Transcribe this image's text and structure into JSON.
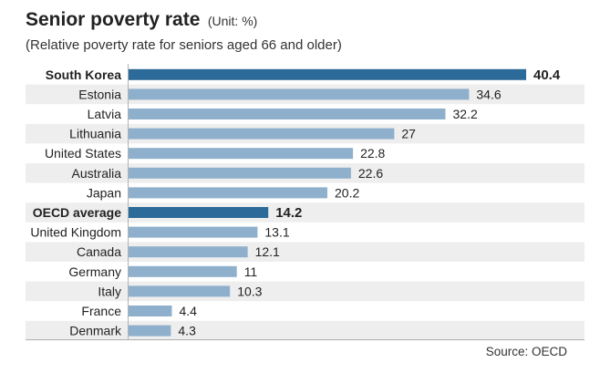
{
  "header": {
    "title": "Senior poverty rate",
    "unit": "(Unit: %)",
    "subtitle": "(Relative poverty rate for seniors aged 66 and older)"
  },
  "footer": {
    "source": "Source: OECD"
  },
  "colors": {
    "highlight_bar": "#2c6a99",
    "normal_bar": "#8fb0cc",
    "stripe": "#eeeeee"
  },
  "chart_data": {
    "type": "bar",
    "orientation": "horizontal",
    "title": "Senior poverty rate",
    "subtitle": "(Relative poverty rate for seniors aged 66 and older)",
    "unit": "%",
    "categories": [
      "South Korea",
      "Estonia",
      "Latvia",
      "Lithuania",
      "United States",
      "Australia",
      "Japan",
      "OECD average",
      "United Kingdom",
      "Canada",
      "Germany",
      "Italy",
      "France",
      "Denmark"
    ],
    "values": [
      40.4,
      34.6,
      32.2,
      27,
      22.8,
      22.6,
      20.2,
      14.2,
      13.1,
      12.1,
      11,
      10.3,
      4.4,
      4.3
    ],
    "value_labels": [
      "40.4",
      "34.6",
      "32.2",
      "27",
      "22.8",
      "22.6",
      "20.2",
      "14.2",
      "13.1",
      "12.1",
      "11",
      "10.3",
      "4.4",
      "4.3"
    ],
    "highlighted": [
      "South Korea",
      "OECD average"
    ],
    "xlim": [
      0,
      40.4
    ],
    "grid": false,
    "legend": "none"
  }
}
